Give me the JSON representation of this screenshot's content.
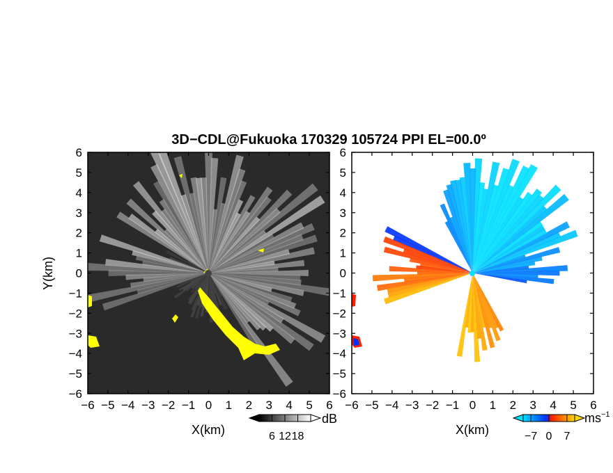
{
  "title": "3D−CDL@Fukuoka 170329 105724 PPI EL=00.0º",
  "chart_data": [
    {
      "type": "heatmap",
      "panel": "reflectivity",
      "xlabel": "X(km)",
      "ylabel": "Y(km)",
      "xlim": [
        -6,
        6
      ],
      "ylim": [
        -6,
        6
      ],
      "xticks": [
        "−6",
        "−5",
        "−4",
        "−3",
        "−2",
        "−1",
        "0",
        "1",
        "2",
        "3",
        "4",
        "5",
        "6"
      ],
      "yticks": [
        "−6",
        "−5",
        "−4",
        "−3",
        "−2",
        "−1",
        "0",
        "1",
        "2",
        "3",
        "4",
        "5",
        "6"
      ],
      "colorbar": {
        "unit": "dB",
        "ticks": [
          "6",
          "12",
          "18"
        ],
        "values": [
          6,
          12,
          18
        ],
        "range": [
          0,
          24
        ]
      },
      "colors": {
        "background": "#2a2a2a",
        "signal": "#ffffff",
        "highlight": "#ffff00"
      }
    },
    {
      "type": "heatmap",
      "panel": "doppler_velocity",
      "xlabel": "X(km)",
      "xlim": [
        -6,
        6
      ],
      "ylim": [
        -6,
        6
      ],
      "xticks": [
        "−6",
        "−5",
        "−4",
        "−3",
        "−2",
        "−1",
        "0",
        "1",
        "2",
        "3",
        "4",
        "5",
        "6"
      ],
      "yticks": [
        "−6",
        "−5",
        "−4",
        "−3",
        "−2",
        "−1",
        "0",
        "1",
        "2",
        "3",
        "4",
        "5",
        "6"
      ],
      "colorbar": {
        "unit": "ms",
        "unit_exponent": "−1",
        "ticks": [
          "−7",
          "0",
          "7"
        ],
        "values": [
          -7,
          0,
          7
        ],
        "range": [
          -10,
          10
        ]
      },
      "colors": {
        "negative_far": "#00e0ff",
        "negative_near": "#0030ff",
        "positive_near": "#ff2000",
        "positive_far": "#ffd800",
        "background": "#ffffff"
      }
    }
  ]
}
